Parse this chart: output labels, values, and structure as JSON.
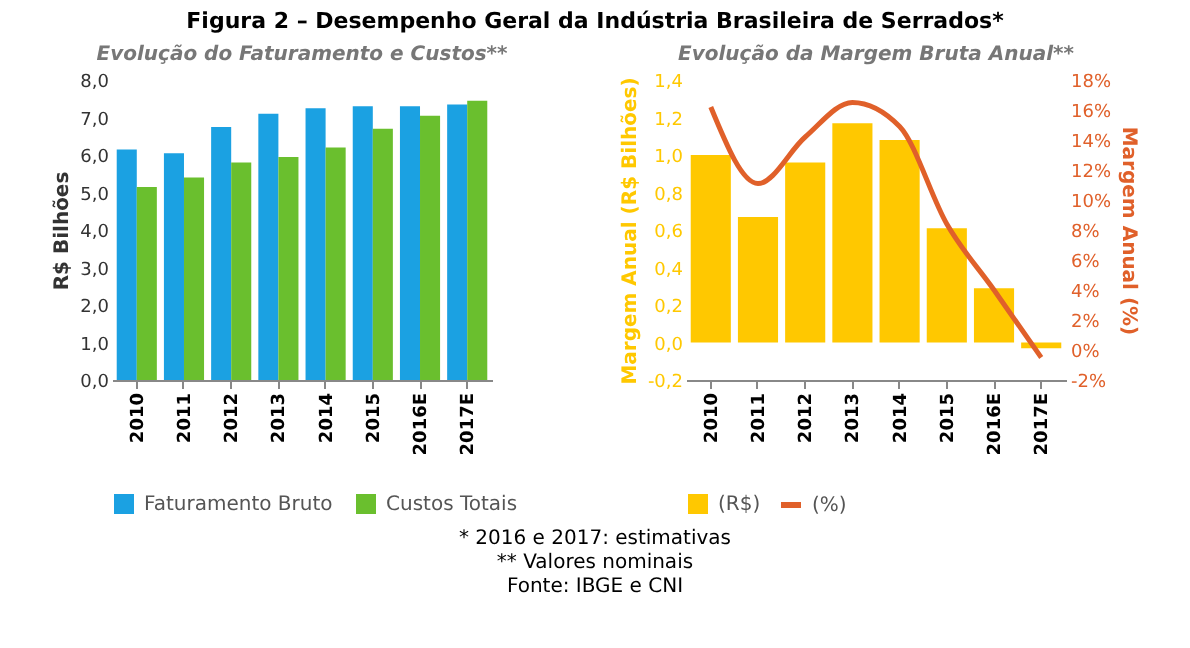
{
  "chart_data": [
    {
      "type": "bar",
      "title": "Figura 2 – Desempenho Geral da Indústria Brasileira de Serrados*",
      "subtitle": "Evolução do Faturamento e Custos**",
      "ylabel": "R$ Bilhões",
      "categories": [
        "2010",
        "2011",
        "2012",
        "2013",
        "2014",
        "2015",
        "2016E",
        "2017E"
      ],
      "series": [
        {
          "name": "Faturamento Bruto",
          "color": "#1ba1e2",
          "values": [
            6.15,
            6.05,
            6.75,
            7.1,
            7.25,
            7.3,
            7.3,
            7.35
          ]
        },
        {
          "name": "Custos Totais",
          "color": "#6abf2e",
          "values": [
            5.15,
            5.4,
            5.8,
            5.95,
            6.2,
            6.7,
            7.05,
            7.45
          ]
        }
      ],
      "ylim": [
        0,
        8
      ],
      "yticks": [
        {
          "value": 0,
          "label": "0,0"
        },
        {
          "value": 1,
          "label": "1,0"
        },
        {
          "value": 2,
          "label": "2,0"
        },
        {
          "value": 3,
          "label": "3,0"
        },
        {
          "value": 4,
          "label": "4,0"
        },
        {
          "value": 5,
          "label": "5,0"
        },
        {
          "value": 6,
          "label": "6,0"
        },
        {
          "value": 7,
          "label": "7,0"
        },
        {
          "value": 8,
          "label": "8,0"
        }
      ],
      "grid": false,
      "legend": "bottom",
      "annotations": [
        "* 2016 e 2017: estimativas",
        "** Valores nominais",
        "Fonte: IBGE e CNI"
      ]
    },
    {
      "type": "bar",
      "subtitle": "Evolução da Margem Bruta Anual**",
      "ylabel": "Margem Anual (R$ Bilhões)",
      "y2label": "Margem Anual (%)",
      "categories": [
        "2010",
        "2011",
        "2012",
        "2013",
        "2014",
        "2015",
        "2016E",
        "2017E"
      ],
      "series": [
        {
          "name": "(R$)",
          "color": "#ffc800",
          "values": [
            1.0,
            0.67,
            0.96,
            1.17,
            1.08,
            0.61,
            0.29,
            -0.03
          ]
        },
        {
          "name": "(%)",
          "type": "line",
          "axis": "y2",
          "color": "#e0602a",
          "values": [
            16.2,
            11.1,
            14.2,
            16.5,
            14.9,
            8.4,
            4.0,
            -0.5
          ]
        }
      ],
      "ylim": [
        -0.2,
        1.4
      ],
      "yticks": [
        {
          "value": -0.2,
          "label": "-0,2"
        },
        {
          "value": 0,
          "label": "0,0"
        },
        {
          "value": 0.2,
          "label": "0,2"
        },
        {
          "value": 0.4,
          "label": "0,4"
        },
        {
          "value": 0.6,
          "label": "0,6"
        },
        {
          "value": 0.8,
          "label": "0,8"
        },
        {
          "value": 1,
          "label": "1,0"
        },
        {
          "value": 1.2,
          "label": "1,2"
        },
        {
          "value": 1.4,
          "label": "1,4"
        }
      ],
      "y2lim": [
        -2,
        18
      ],
      "y2ticks": [
        {
          "value": -2,
          "label": "-2%"
        },
        {
          "value": 0,
          "label": "0%"
        },
        {
          "value": 2,
          "label": "2%"
        },
        {
          "value": 4,
          "label": "4%"
        },
        {
          "value": 6,
          "label": "6%"
        },
        {
          "value": 8,
          "label": "8%"
        },
        {
          "value": 10,
          "label": "10%"
        },
        {
          "value": 12,
          "label": "12%"
        },
        {
          "value": 14,
          "label": "14%"
        },
        {
          "value": 16,
          "label": "16%"
        },
        {
          "value": 18,
          "label": "18%"
        }
      ],
      "grid": false,
      "legend": "bottom",
      "marker": "none",
      "line_style": "solid"
    }
  ]
}
